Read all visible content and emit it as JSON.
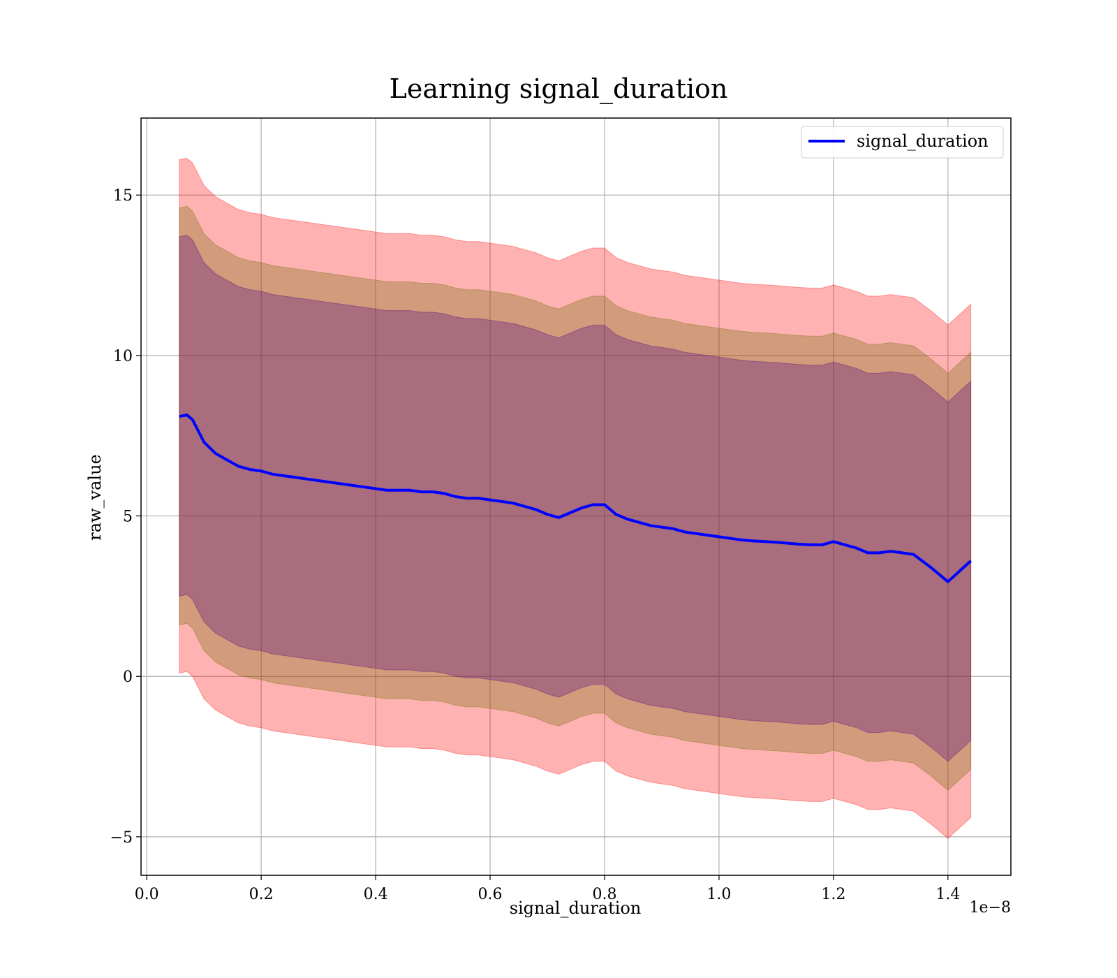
{
  "chart_data": {
    "type": "area",
    "title": "Learning signal_duration",
    "xlabel": "signal_duration",
    "ylabel": "raw_value",
    "x_offset_label": "1e−8",
    "xlim": [
      -0.01,
      1.51
    ],
    "ylim": [
      -6.2,
      17.4
    ],
    "x_ticks": [
      0.0,
      0.2,
      0.4,
      0.6,
      0.8,
      1.0,
      1.2,
      1.4
    ],
    "x_tick_labels": [
      "0.0",
      "0.2",
      "0.4",
      "0.6",
      "0.8",
      "1.0",
      "1.2",
      "1.4"
    ],
    "y_ticks": [
      -5,
      0,
      5,
      10,
      15
    ],
    "y_tick_labels": [
      "−5",
      "0",
      "5",
      "10",
      "15"
    ],
    "grid": true,
    "legend_position": "upper right",
    "x": [
      0.057,
      0.07,
      0.08,
      0.09,
      0.1,
      0.12,
      0.14,
      0.16,
      0.18,
      0.2,
      0.22,
      0.24,
      0.26,
      0.28,
      0.3,
      0.32,
      0.34,
      0.36,
      0.38,
      0.4,
      0.42,
      0.44,
      0.46,
      0.48,
      0.5,
      0.52,
      0.54,
      0.56,
      0.58,
      0.6,
      0.62,
      0.64,
      0.66,
      0.68,
      0.7,
      0.72,
      0.74,
      0.76,
      0.78,
      0.8,
      0.82,
      0.84,
      0.86,
      0.88,
      0.9,
      0.92,
      0.94,
      0.96,
      0.98,
      1.0,
      1.02,
      1.04,
      1.06,
      1.08,
      1.1,
      1.12,
      1.14,
      1.16,
      1.18,
      1.2,
      1.22,
      1.24,
      1.26,
      1.28,
      1.3,
      1.32,
      1.34,
      1.37,
      1.4,
      1.44
    ],
    "series": [
      {
        "name": "signal_duration",
        "color": "#0000ff",
        "values": [
          8.1,
          8.15,
          8.0,
          7.65,
          7.3,
          6.95,
          6.75,
          6.55,
          6.45,
          6.4,
          6.3,
          6.25,
          6.2,
          6.15,
          6.1,
          6.05,
          6.0,
          5.95,
          5.9,
          5.85,
          5.8,
          5.8,
          5.8,
          5.75,
          5.75,
          5.7,
          5.6,
          5.55,
          5.55,
          5.5,
          5.45,
          5.4,
          5.3,
          5.2,
          5.05,
          4.95,
          5.1,
          5.25,
          5.35,
          5.35,
          5.05,
          4.9,
          4.8,
          4.7,
          4.65,
          4.6,
          4.5,
          4.45,
          4.4,
          4.35,
          4.3,
          4.25,
          4.22,
          4.2,
          4.18,
          4.15,
          4.12,
          4.1,
          4.1,
          4.2,
          4.1,
          4.0,
          3.85,
          3.85,
          3.9,
          3.85,
          3.8,
          3.4,
          2.95,
          3.6
        ]
      }
    ],
    "bands": [
      {
        "color": "#ff0000",
        "opacity": 0.3,
        "upper_offset": 8.0,
        "lower_offset": 8.0
      },
      {
        "color": "#6b6b00",
        "opacity": 0.3,
        "upper_offset": 6.5,
        "lower_offset": 6.5
      },
      {
        "color": "#4b0082",
        "opacity": 0.3,
        "upper_offset": 5.6,
        "lower_offset": 5.6
      }
    ]
  }
}
